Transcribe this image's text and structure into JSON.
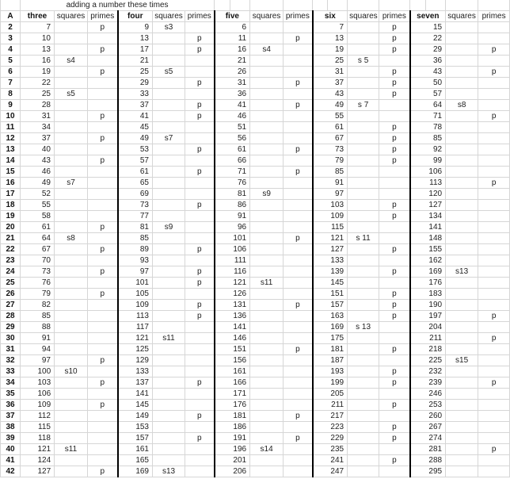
{
  "sheet": {
    "title": "adding a number these times",
    "corner_label": "A",
    "groups": [
      {
        "name": "three",
        "squares_label": "squares",
        "primes_label": "primes"
      },
      {
        "name": "four",
        "squares_label": "squares",
        "primes_label": "primes"
      },
      {
        "name": "five",
        "squares_label": "squares",
        "primes_label": "primes"
      },
      {
        "name": "six",
        "squares_label": "squares",
        "primes_label": "primes"
      },
      {
        "name": "seven",
        "squares_label": "squares",
        "primes_label": "primes"
      }
    ],
    "rows": [
      {
        "label": "2",
        "cells": [
          "7",
          "",
          "p",
          "9",
          "s3",
          "",
          "6",
          "",
          "",
          "7",
          "",
          "p",
          "15",
          "",
          ""
        ]
      },
      {
        "label": "3",
        "cells": [
          "10",
          "",
          "",
          "13",
          "",
          "p",
          "11",
          "",
          "p",
          "13",
          "",
          "p",
          "22",
          "",
          ""
        ]
      },
      {
        "label": "4",
        "cells": [
          "13",
          "",
          "p",
          "17",
          "",
          "p",
          "16",
          "s4",
          "",
          "19",
          "",
          "p",
          "29",
          "",
          "p"
        ]
      },
      {
        "label": "5",
        "cells": [
          "16",
          "s4",
          "",
          "21",
          "",
          "",
          "21",
          "",
          "",
          "25",
          "s 5",
          "",
          "36",
          "",
          ""
        ]
      },
      {
        "label": "6",
        "cells": [
          "19",
          "",
          "p",
          "25",
          "s5",
          "",
          "26",
          "",
          "",
          "31",
          "",
          "p",
          "43",
          "",
          "p"
        ]
      },
      {
        "label": "7",
        "cells": [
          "22",
          "",
          "",
          "29",
          "",
          "p",
          "31",
          "",
          "p",
          "37",
          "",
          "p",
          "50",
          "",
          ""
        ]
      },
      {
        "label": "8",
        "cells": [
          "25",
          "s5",
          "",
          "33",
          "",
          "",
          "36",
          "",
          "",
          "43",
          "",
          "p",
          "57",
          "",
          ""
        ]
      },
      {
        "label": "9",
        "cells": [
          "28",
          "",
          "",
          "37",
          "",
          "p",
          "41",
          "",
          "p",
          "49",
          "s 7",
          "",
          "64",
          "s8",
          ""
        ]
      },
      {
        "label": "10",
        "cells": [
          "31",
          "",
          "p",
          "41",
          "",
          "p",
          "46",
          "",
          "",
          "55",
          "",
          "",
          "71",
          "",
          "p"
        ]
      },
      {
        "label": "11",
        "cells": [
          "34",
          "",
          "",
          "45",
          "",
          "",
          "51",
          "",
          "",
          "61",
          "",
          "p",
          "78",
          "",
          ""
        ]
      },
      {
        "label": "12",
        "cells": [
          "37",
          "",
          "p",
          "49",
          "s7",
          "",
          "56",
          "",
          "",
          "67",
          "",
          "p",
          "85",
          "",
          ""
        ]
      },
      {
        "label": "13",
        "cells": [
          "40",
          "",
          "",
          "53",
          "",
          "p",
          "61",
          "",
          "p",
          "73",
          "",
          "p",
          "92",
          "",
          ""
        ]
      },
      {
        "label": "14",
        "cells": [
          "43",
          "",
          "p",
          "57",
          "",
          "",
          "66",
          "",
          "",
          "79",
          "",
          "p",
          "99",
          "",
          ""
        ]
      },
      {
        "label": "15",
        "cells": [
          "46",
          "",
          "",
          "61",
          "",
          "p",
          "71",
          "",
          "p",
          "85",
          "",
          "",
          "106",
          "",
          ""
        ]
      },
      {
        "label": "16",
        "cells": [
          "49",
          "s7",
          "",
          "65",
          "",
          "",
          "76",
          "",
          "",
          "91",
          "",
          "",
          "113",
          "",
          "p"
        ]
      },
      {
        "label": "17",
        "cells": [
          "52",
          "",
          "",
          "69",
          "",
          "",
          "81",
          "s9",
          "",
          "97",
          "",
          "",
          "120",
          "",
          ""
        ]
      },
      {
        "label": "18",
        "cells": [
          "55",
          "",
          "",
          "73",
          "",
          "p",
          "86",
          "",
          "",
          "103",
          "",
          "p",
          "127",
          "",
          ""
        ]
      },
      {
        "label": "19",
        "cells": [
          "58",
          "",
          "",
          "77",
          "",
          "",
          "91",
          "",
          "",
          "109",
          "",
          "p",
          "134",
          "",
          ""
        ]
      },
      {
        "label": "20",
        "cells": [
          "61",
          "",
          "p",
          "81",
          "s9",
          "",
          "96",
          "",
          "",
          "115",
          "",
          "",
          "141",
          "",
          ""
        ]
      },
      {
        "label": "21",
        "cells": [
          "64",
          "s8",
          "",
          "85",
          "",
          "",
          "101",
          "",
          "p",
          "121",
          "s 11",
          "",
          "148",
          "",
          ""
        ]
      },
      {
        "label": "22",
        "cells": [
          "67",
          "",
          "p",
          "89",
          "",
          "p",
          "106",
          "",
          "",
          "127",
          "",
          "p",
          "155",
          "",
          ""
        ]
      },
      {
        "label": "23",
        "cells": [
          "70",
          "",
          "",
          "93",
          "",
          "",
          "111",
          "",
          "",
          "133",
          "",
          "",
          "162",
          "",
          ""
        ]
      },
      {
        "label": "24",
        "cells": [
          "73",
          "",
          "p",
          "97",
          "",
          "p",
          "116",
          "",
          "",
          "139",
          "",
          "p",
          "169",
          "s13",
          ""
        ]
      },
      {
        "label": "25",
        "cells": [
          "76",
          "",
          "",
          "101",
          "",
          "p",
          "121",
          "s11",
          "",
          "145",
          "",
          "",
          "176",
          "",
          ""
        ]
      },
      {
        "label": "26",
        "cells": [
          "79",
          "",
          "p",
          "105",
          "",
          "",
          "126",
          "",
          "",
          "151",
          "",
          "p",
          "183",
          "",
          ""
        ]
      },
      {
        "label": "27",
        "cells": [
          "82",
          "",
          "",
          "109",
          "",
          "p",
          "131",
          "",
          "p",
          "157",
          "",
          "p",
          "190",
          "",
          ""
        ]
      },
      {
        "label": "28",
        "cells": [
          "85",
          "",
          "",
          "113",
          "",
          "p",
          "136",
          "",
          "",
          "163",
          "",
          "p",
          "197",
          "",
          "p"
        ]
      },
      {
        "label": "29",
        "cells": [
          "88",
          "",
          "",
          "117",
          "",
          "",
          "141",
          "",
          "",
          "169",
          "s 13",
          "",
          "204",
          "",
          ""
        ]
      },
      {
        "label": "30",
        "cells": [
          "91",
          "",
          "",
          "121",
          "s11",
          "",
          "146",
          "",
          "",
          "175",
          "",
          "",
          "211",
          "",
          "p"
        ]
      },
      {
        "label": "31",
        "cells": [
          "94",
          "",
          "",
          "125",
          "",
          "",
          "151",
          "",
          "p",
          "181",
          "",
          "p",
          "218",
          "",
          ""
        ]
      },
      {
        "label": "32",
        "cells": [
          "97",
          "",
          "p",
          "129",
          "",
          "",
          "156",
          "",
          "",
          "187",
          "",
          "",
          "225",
          "s15",
          ""
        ]
      },
      {
        "label": "33",
        "cells": [
          "100",
          "s10",
          "",
          "133",
          "",
          "",
          "161",
          "",
          "",
          "193",
          "",
          "p",
          "232",
          "",
          ""
        ]
      },
      {
        "label": "34",
        "cells": [
          "103",
          "",
          "p",
          "137",
          "",
          "p",
          "166",
          "",
          "",
          "199",
          "",
          "p",
          "239",
          "",
          "p"
        ]
      },
      {
        "label": "35",
        "cells": [
          "106",
          "",
          "",
          "141",
          "",
          "",
          "171",
          "",
          "",
          "205",
          "",
          "",
          "246",
          "",
          ""
        ]
      },
      {
        "label": "36",
        "cells": [
          "109",
          "",
          "p",
          "145",
          "",
          "",
          "176",
          "",
          "",
          "211",
          "",
          "p",
          "253",
          "",
          ""
        ]
      },
      {
        "label": "37",
        "cells": [
          "112",
          "",
          "",
          "149",
          "",
          "p",
          "181",
          "",
          "p",
          "217",
          "",
          "",
          "260",
          "",
          ""
        ]
      },
      {
        "label": "38",
        "cells": [
          "115",
          "",
          "",
          "153",
          "",
          "",
          "186",
          "",
          "",
          "223",
          "",
          "p",
          "267",
          "",
          ""
        ]
      },
      {
        "label": "39",
        "cells": [
          "118",
          "",
          "",
          "157",
          "",
          "p",
          "191",
          "",
          "p",
          "229",
          "",
          "p",
          "274",
          "",
          ""
        ]
      },
      {
        "label": "40",
        "cells": [
          "121",
          "s11",
          "",
          "161",
          "",
          "",
          "196",
          "s14",
          "",
          "235",
          "",
          "",
          "281",
          "",
          "p"
        ]
      },
      {
        "label": "41",
        "cells": [
          "124",
          "",
          "",
          "165",
          "",
          "",
          "201",
          "",
          "",
          "241",
          "",
          "p",
          "288",
          "",
          ""
        ]
      },
      {
        "label": "42",
        "cells": [
          "127",
          "",
          "p",
          "169",
          "s13",
          "",
          "206",
          "",
          "",
          "247",
          "",
          "",
          "295",
          "",
          ""
        ]
      }
    ]
  }
}
